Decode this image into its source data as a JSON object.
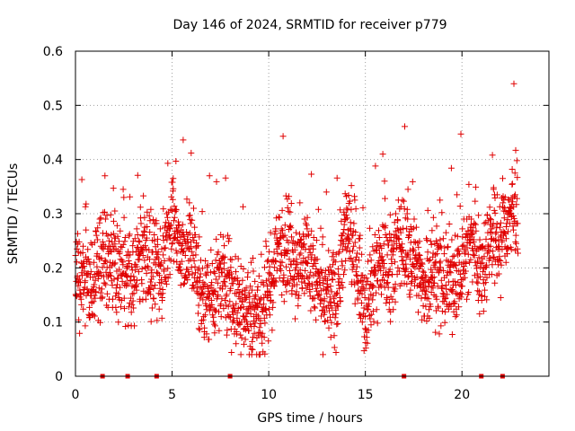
{
  "chart_data": {
    "type": "scatter",
    "title": "Day 146 of 2024, SRMTID for receiver p779",
    "xlabel": "GPS time / hours",
    "ylabel": "SRMTID / TECUs",
    "xlim": [
      0,
      24.5
    ],
    "ylim": [
      0,
      0.6
    ],
    "x_ticks": [
      0,
      5,
      10,
      15,
      20
    ],
    "x_tick_labels": [
      "0",
      "5",
      "10",
      "15",
      "20"
    ],
    "y_ticks": [
      0,
      0.1,
      0.2,
      0.3,
      0.4,
      0.5,
      0.6
    ],
    "y_tick_labels": [
      "0",
      "0.1",
      "0.2",
      "0.3",
      "0.4",
      "0.5",
      "0.6"
    ],
    "grid": true,
    "marker": "plus",
    "color": "#e00000",
    "baseline_markers_x": [
      1.4,
      2.7,
      4.2,
      8.0,
      17.0,
      21.0,
      22.1
    ],
    "trend_hours": [
      0,
      0.5,
      1,
      1.5,
      2,
      2.5,
      3,
      3.5,
      4,
      4.5,
      5,
      5.5,
      6,
      6.5,
      7,
      7.5,
      8,
      8.5,
      9,
      9.5,
      10,
      10.5,
      11,
      11.5,
      12,
      12.5,
      13,
      13.5,
      14,
      14.5,
      15,
      15.5,
      16,
      16.5,
      17,
      17.5,
      18,
      18.5,
      19,
      19.5,
      20,
      20.5,
      21,
      21.5,
      22,
      22.5,
      22.9
    ],
    "trend_values": [
      0.2,
      0.17,
      0.18,
      0.22,
      0.2,
      0.19,
      0.17,
      0.24,
      0.18,
      0.2,
      0.3,
      0.22,
      0.24,
      0.15,
      0.15,
      0.18,
      0.17,
      0.13,
      0.12,
      0.11,
      0.15,
      0.24,
      0.25,
      0.2,
      0.23,
      0.16,
      0.14,
      0.15,
      0.27,
      0.22,
      0.13,
      0.2,
      0.2,
      0.22,
      0.25,
      0.22,
      0.17,
      0.2,
      0.17,
      0.18,
      0.2,
      0.25,
      0.2,
      0.26,
      0.25,
      0.3,
      0.3
    ],
    "points": []
  }
}
